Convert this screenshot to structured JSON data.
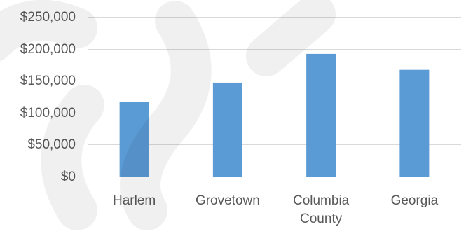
{
  "chart_data": {
    "type": "bar",
    "categories": [
      [
        "Harlem"
      ],
      [
        "Grovetown"
      ],
      [
        "Columbia",
        "County"
      ],
      [
        "Georgia"
      ]
    ],
    "values": [
      117000,
      147000,
      192000,
      167000
    ],
    "ylim": [
      0,
      250000
    ],
    "yticks": [
      0,
      50000,
      100000,
      150000,
      200000,
      250000
    ],
    "ytick_labels": [
      "$0",
      "$50,000",
      "$100,000",
      "$150,000",
      "$200,000",
      "$250,000"
    ],
    "grid": true,
    "legend": "none",
    "colors": {
      "bar": "#5b9bd5",
      "grid": "#d9d9d9",
      "text": "#595959"
    }
  }
}
